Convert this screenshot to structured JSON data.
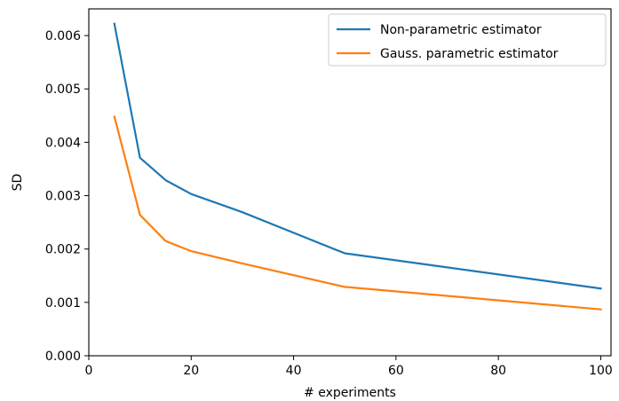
{
  "chart_data": {
    "type": "line",
    "xlabel": "# experiments",
    "ylabel": "SD",
    "xlim": [
      0,
      102
    ],
    "ylim": [
      0,
      0.0065
    ],
    "xticks": [
      0,
      20,
      40,
      60,
      80,
      100
    ],
    "yticks": [
      "0.000",
      "0.001",
      "0.002",
      "0.003",
      "0.004",
      "0.005",
      "0.006"
    ],
    "grid": false,
    "legend_position": "top-right",
    "series": [
      {
        "name": "Non-parametric estimator",
        "color": "#1f77b4",
        "x": [
          5,
          10,
          15,
          20,
          30,
          50,
          100
        ],
        "y": [
          0.00622,
          0.00371,
          0.00329,
          0.00303,
          0.00269,
          0.00192,
          0.00126
        ]
      },
      {
        "name": "Gauss. parametric estimator",
        "color": "#ff7f0e",
        "x": [
          5,
          10,
          15,
          20,
          30,
          50,
          100
        ],
        "y": [
          0.00448,
          0.00264,
          0.00215,
          0.00196,
          0.00173,
          0.00129,
          0.00087
        ]
      }
    ]
  }
}
